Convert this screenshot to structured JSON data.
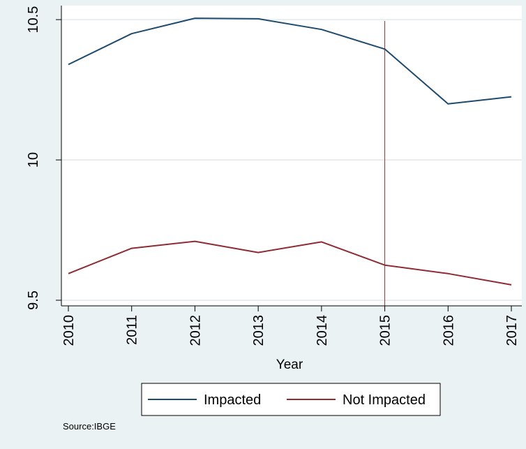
{
  "chart_data": {
    "type": "line",
    "title": "",
    "xlabel": "Year",
    "ylabel": "",
    "x": [
      2010,
      2011,
      2012,
      2013,
      2014,
      2015,
      2016,
      2017
    ],
    "x_tick_labels": [
      "2010",
      "2011",
      "2012",
      "2013",
      "2014",
      "2015",
      "2016",
      "2017"
    ],
    "y_ticks": [
      9.5,
      10,
      10.5
    ],
    "y_tick_labels": [
      "9.5",
      "10",
      "10.5"
    ],
    "ylim": [
      9.48,
      10.55
    ],
    "xlim": [
      2010,
      2017
    ],
    "grid": true,
    "legend_position": "bottom",
    "reference_line": {
      "axis": "x",
      "value": 2015,
      "color": "#b0282c"
    },
    "series": [
      {
        "name": "Impacted",
        "color": "#1f4b6e",
        "values": [
          10.34,
          10.45,
          10.505,
          10.503,
          10.465,
          10.395,
          10.2,
          10.225
        ]
      },
      {
        "name": "Not Impacted",
        "color": "#8e2c33",
        "values": [
          9.595,
          9.685,
          9.71,
          9.67,
          9.708,
          9.625,
          9.595,
          9.555
        ]
      }
    ],
    "note": "Source:IBGE"
  }
}
